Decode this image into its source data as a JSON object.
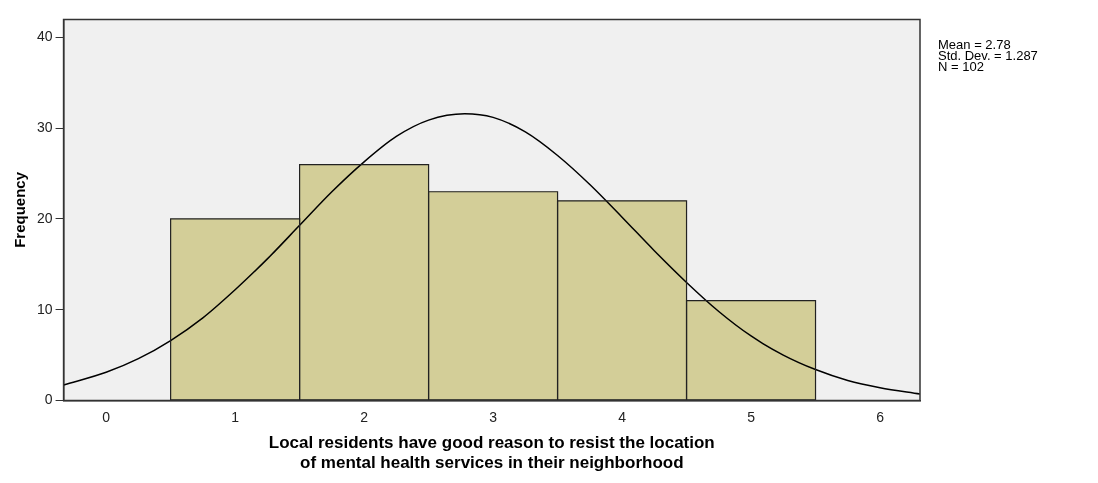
{
  "chart_data": {
    "type": "histogram",
    "xlabel": "Local residents have good reason to resist the location of mental health services in their neighborhood",
    "ylabel": "Frequency",
    "bins": [
      0.5,
      1.5,
      2.5,
      3.5,
      4.5,
      5.5
    ],
    "values": [
      20,
      26,
      23,
      22,
      11
    ],
    "color": "#d3ce98",
    "series": [
      {
        "type": "line",
        "color": "#000000",
        "x": [
          -0.33,
          0,
          0.25,
          0.5,
          0.75,
          1,
          1.25,
          1.5,
          1.75,
          2,
          2.25,
          2.5,
          2.78,
          3,
          3.25,
          3.5,
          3.75,
          4,
          4.25,
          4.5,
          4.75,
          5,
          5.25,
          5.5,
          5.75,
          6,
          6.31
        ],
        "values": [
          1.7,
          3.1,
          4.6,
          6.6,
          9.1,
          12.2,
          15.6,
          19.3,
          23.0,
          26.3,
          29.1,
          30.9,
          31.6,
          31.2,
          29.6,
          27.0,
          23.8,
          20.2,
          16.5,
          13.0,
          9.8,
          7.1,
          5.0,
          3.4,
          2.2,
          1.4,
          0.7
        ]
      }
    ],
    "xlim": [
      -0.33,
      6.31
    ],
    "xticks": [
      0,
      1,
      2,
      3,
      4,
      5,
      6
    ],
    "ylim": [
      0,
      42
    ],
    "yticks": [
      0,
      10,
      20,
      30,
      40
    ],
    "grid": false,
    "legend": false,
    "marker": "none",
    "annotations": [
      "Mean = 2.78",
      "Std. Dev. = 1.287",
      "N = 102"
    ]
  }
}
